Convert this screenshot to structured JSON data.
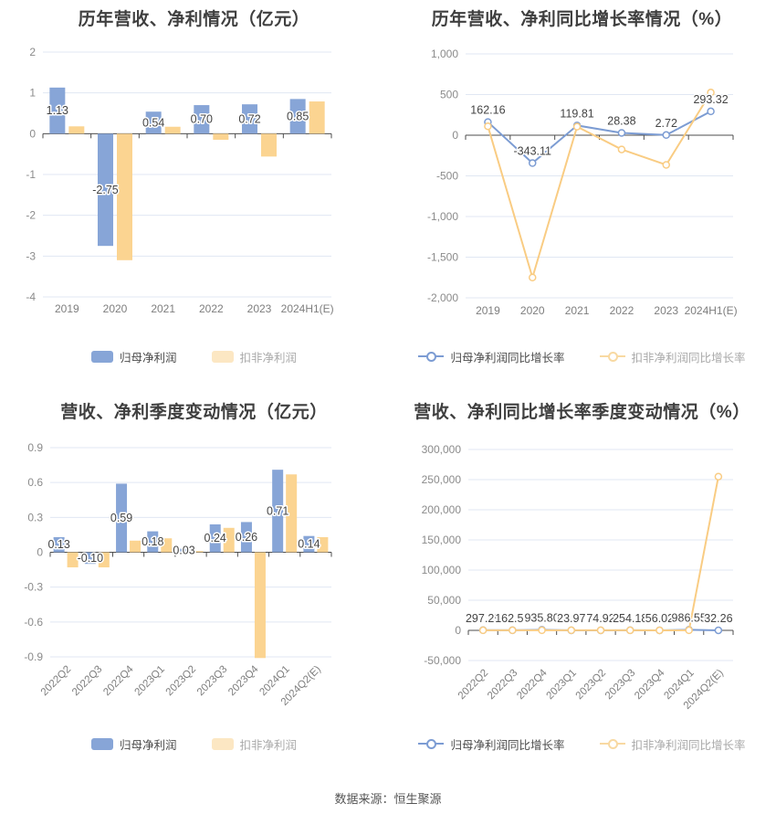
{
  "footer": {
    "source": "数据来源：恒生聚源"
  },
  "colors": {
    "bar_blue": "#87a5d7",
    "bar_yellow": "#fbd491",
    "line_blue": "#7c9cd3",
    "line_yellow": "#f9cc83",
    "legend_bar_blue": "#87a5d7",
    "legend_bar_yellow": "#fce7c3",
    "legend_line_blue": "#7c9cd3",
    "legend_line_yellow": "#f8d9a2",
    "grid_line": "#e0e7f3",
    "zero_axis": "#4d4d4d",
    "ytick_label": "#8b8b8b",
    "xtick_label": "#7e7e7e",
    "data_label": "#444444"
  },
  "chart_data": [
    {
      "type": "bar",
      "title": "历年营收、净利情况（亿元）",
      "categories": [
        "2019",
        "2020",
        "2021",
        "2022",
        "2023",
        "2024H1(E)"
      ],
      "yticks": [
        2,
        1,
        0,
        -1,
        -2,
        -3,
        -4
      ],
      "ytick_labels": [
        "2",
        "1",
        "0",
        "-1",
        "-2",
        "-3",
        "-4"
      ],
      "ylim": [
        -4,
        2
      ],
      "grid": true,
      "legend_position": "bottom",
      "series": [
        {
          "name": "归母净利润",
          "color_key": "bar_blue",
          "legend_color_key": "legend_bar_blue",
          "values": [
            1.13,
            -2.75,
            0.54,
            0.7,
            0.72,
            0.85
          ],
          "labels": [
            "1.13",
            "-2.75",
            "0.54",
            "0.70",
            "0.72",
            "0.85"
          ]
        },
        {
          "name": "扣非净利润",
          "color_key": "bar_yellow",
          "legend_color_key": "legend_bar_yellow",
          "values": [
            0.18,
            -3.1,
            0.17,
            -0.15,
            -0.56,
            0.79
          ]
        }
      ]
    },
    {
      "type": "line",
      "title": "历年营收、净利同比增长率情况（%）",
      "categories": [
        "2019",
        "2020",
        "2021",
        "2022",
        "2023",
        "2024H1(E)"
      ],
      "yticks": [
        1000,
        500,
        0,
        -500,
        -1000,
        -1500,
        -2000
      ],
      "ytick_labels": [
        "1,000",
        "500",
        "0",
        "-500",
        "-1,000",
        "-1,500",
        "-2,000"
      ],
      "ylim": [
        -2000,
        1000
      ],
      "grid": true,
      "legend_position": "bottom",
      "series": [
        {
          "name": "归母净利润同比增长率",
          "color_key": "line_blue",
          "legend_color_key": "legend_line_blue",
          "values": [
            162.16,
            -343.11,
            119.81,
            28.38,
            2.72,
            293.32
          ],
          "labels": [
            "162.16",
            "-343.11",
            "119.81",
            "28.38",
            "2.72",
            "293.32"
          ]
        },
        {
          "name": "扣非净利润同比增长率",
          "color_key": "line_yellow",
          "legend_color_key": "legend_line_yellow",
          "values": [
            110,
            -1750,
            105,
            -175,
            -365,
            525
          ]
        }
      ]
    },
    {
      "type": "bar",
      "title": "营收、净利季度变动情况（亿元）",
      "categories": [
        "2022Q2",
        "2022Q3",
        "2022Q4",
        "2023Q1",
        "2023Q2",
        "2023Q3",
        "2023Q4",
        "2024Q1",
        "2024Q2(E)"
      ],
      "yticks": [
        0.9,
        0.6,
        0.3,
        0,
        -0.3,
        -0.6,
        -0.9
      ],
      "ytick_labels": [
        "0.9",
        "0.6",
        "0.3",
        "0",
        "-0.3",
        "-0.6",
        "-0.9"
      ],
      "ylim": [
        -0.9,
        0.9
      ],
      "grid": true,
      "rotate_x_labels": true,
      "legend_position": "bottom",
      "series": [
        {
          "name": "归母净利润",
          "color_key": "bar_blue",
          "legend_color_key": "legend_bar_blue",
          "values": [
            0.13,
            -0.1,
            0.59,
            0.18,
            0.03,
            0.24,
            0.26,
            0.71,
            0.14
          ],
          "labels": [
            "0.13",
            "-0.10",
            "0.59",
            "0.18",
            "0.03",
            "0.24",
            "0.26",
            "0.71",
            "0.14"
          ]
        },
        {
          "name": "扣非净利润",
          "color_key": "bar_yellow",
          "legend_color_key": "legend_bar_yellow",
          "values": [
            -0.13,
            -0.13,
            0.1,
            0.12,
            0.01,
            0.21,
            -0.91,
            0.67,
            0.13
          ]
        }
      ]
    },
    {
      "type": "line",
      "title": "营收、净利同比增长率季度变动情况（%）",
      "categories": [
        "2022Q2",
        "2022Q3",
        "2022Q4",
        "2023Q1",
        "2023Q2",
        "2023Q3",
        "2023Q4",
        "2024Q1",
        "2024Q2(E)"
      ],
      "yticks": [
        300000,
        250000,
        200000,
        150000,
        100000,
        50000,
        0,
        -50000
      ],
      "ytick_labels": [
        "300,000",
        "250,000",
        "200,000",
        "150,000",
        "100,000",
        "50,000",
        "0",
        "-50,000"
      ],
      "ylim": [
        -50000,
        300000
      ],
      "grid": true,
      "rotate_x_labels": true,
      "legend_position": "bottom",
      "series": [
        {
          "name": "归母净利润同比增长率",
          "color_key": "line_blue",
          "legend_color_key": "legend_line_blue",
          "values": [
            297.25,
            162.59,
            935.8,
            23.97,
            74.92,
            254.18,
            56.02,
            986.55,
            32.26
          ],
          "labels": [
            "297.25",
            "162.59",
            "935.80",
            "23.97",
            "74.92",
            "254.18",
            "56.02",
            "986.55",
            "32.26"
          ]
        },
        {
          "name": "扣非净利润同比增长率",
          "color_key": "line_yellow",
          "legend_color_key": "legend_line_yellow",
          "values": [
            150,
            130,
            120,
            110,
            100,
            95,
            90,
            130,
            255000
          ]
        }
      ]
    }
  ]
}
